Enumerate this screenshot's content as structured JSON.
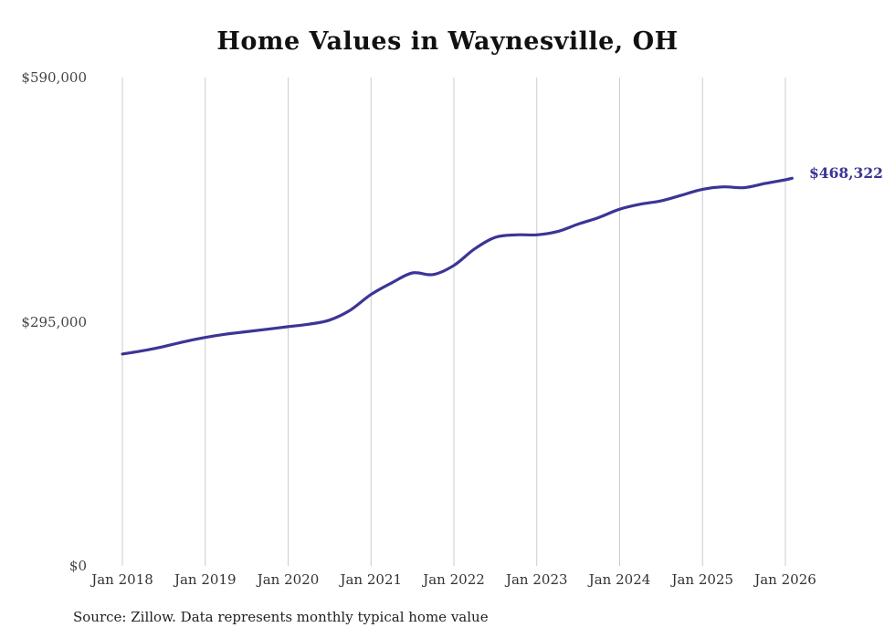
{
  "title": "Home Values in Waynesville, OH",
  "end_label": "$468,322",
  "source_note": "Source: Zillow. Data represents monthly typical home value",
  "colors": {
    "line": "#3b3596",
    "grid": "#cccccc",
    "title_text": "#111111",
    "axis_text": "#444444"
  },
  "chart_data": {
    "type": "line",
    "title": "Home Values in Waynesville, OH",
    "xlabel": "",
    "ylabel": "",
    "ylim": [
      0,
      590000
    ],
    "grid": "vertical-only",
    "legend": "none",
    "x_ticks": [
      "Jan 2018",
      "Jan 2019",
      "Jan 2020",
      "Jan 2021",
      "Jan 2022",
      "Jan 2023",
      "Jan 2024",
      "Jan 2025",
      "Jan 2026"
    ],
    "x_tick_values": [
      2018,
      2019,
      2020,
      2021,
      2022,
      2023,
      2024,
      2025,
      2026
    ],
    "y_tick_labels": [
      "$0",
      "$295,000",
      "$590,000"
    ],
    "y_tick_values": [
      0,
      295000,
      590000
    ],
    "series_name": "Typical home value",
    "points": [
      [
        2018.0,
        256000
      ],
      [
        2018.25,
        260000
      ],
      [
        2018.5,
        265000
      ],
      [
        2018.75,
        271000
      ],
      [
        2019.0,
        276000
      ],
      [
        2019.25,
        280000
      ],
      [
        2019.5,
        283000
      ],
      [
        2019.75,
        286000
      ],
      [
        2020.0,
        289000
      ],
      [
        2020.25,
        292000
      ],
      [
        2020.5,
        297000
      ],
      [
        2020.75,
        309000
      ],
      [
        2021.0,
        328000
      ],
      [
        2021.25,
        342000
      ],
      [
        2021.5,
        354000
      ],
      [
        2021.75,
        352000
      ],
      [
        2022.0,
        363000
      ],
      [
        2022.25,
        383000
      ],
      [
        2022.5,
        397000
      ],
      [
        2022.75,
        400000
      ],
      [
        2023.0,
        400000
      ],
      [
        2023.25,
        404000
      ],
      [
        2023.5,
        413000
      ],
      [
        2023.75,
        421000
      ],
      [
        2024.0,
        431000
      ],
      [
        2024.25,
        437000
      ],
      [
        2024.5,
        441000
      ],
      [
        2024.75,
        448000
      ],
      [
        2025.0,
        455000
      ],
      [
        2025.25,
        458000
      ],
      [
        2025.5,
        457000
      ],
      [
        2025.75,
        462000
      ],
      [
        2026.0,
        466500
      ],
      [
        2026.08,
        468322
      ]
    ],
    "final_value": 468322
  }
}
